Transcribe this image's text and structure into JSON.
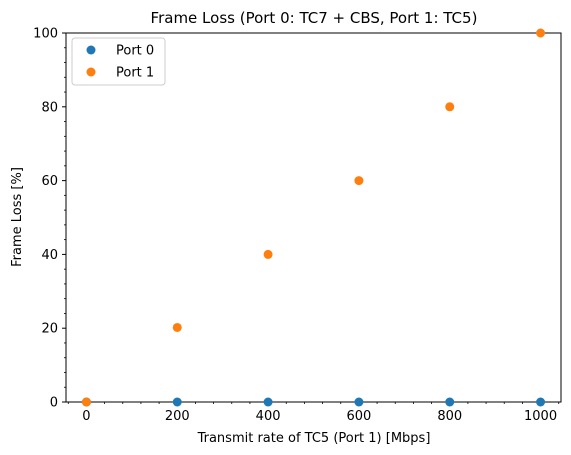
{
  "chart_data": {
    "type": "scatter",
    "title": "Frame Loss (Port 0: TC7 + CBS, Port 1: TC5)",
    "xlabel": "Transmit rate of TC5 (Port 1) [Mbps]",
    "ylabel": "Frame Loss [%]",
    "xlim": [
      -45,
      1045
    ],
    "ylim": [
      0,
      100
    ],
    "xticks": [
      0,
      200,
      400,
      600,
      800,
      1000
    ],
    "yticks": [
      0,
      20,
      40,
      60,
      80,
      100
    ],
    "grid": false,
    "legend_position": "top-left",
    "x": [
      0,
      200,
      400,
      600,
      800,
      1000
    ],
    "series": [
      {
        "name": "Port 0",
        "color": "#1f77b4",
        "values": [
          0,
          0,
          0,
          0,
          0,
          0
        ]
      },
      {
        "name": "Port 1",
        "color": "#ff7f0e",
        "values": [
          0,
          20.2,
          40,
          60,
          80,
          100
        ]
      }
    ]
  }
}
